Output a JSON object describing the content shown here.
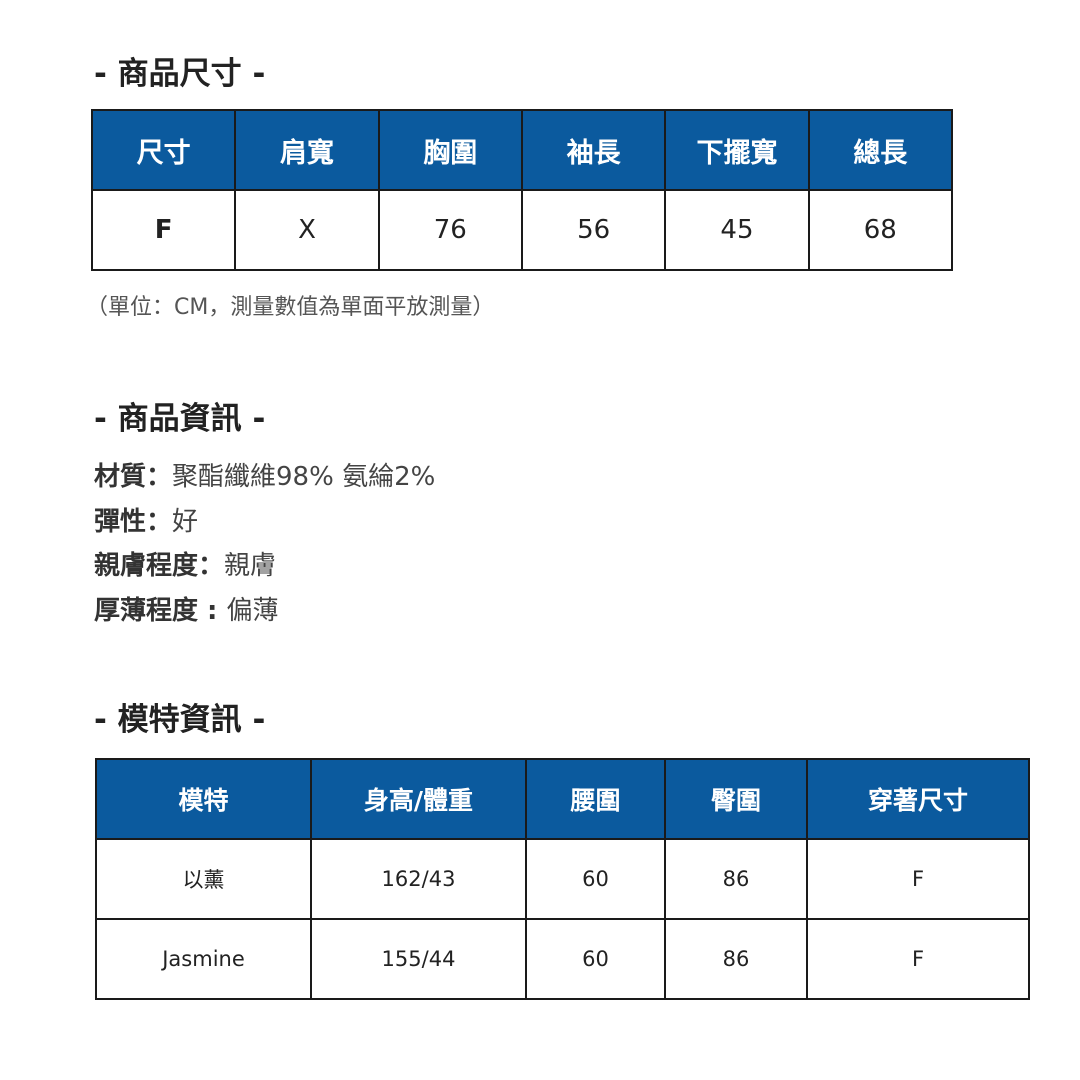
{
  "size_section": {
    "title": "- 商品尺寸 -",
    "headers": [
      "尺寸",
      "肩寬",
      "胸圍",
      "袖長",
      "下擺寬",
      "總長"
    ],
    "rows": [
      [
        "F",
        "X",
        "76",
        "56",
        "45",
        "68"
      ]
    ],
    "note": "（單位：CM，測量數值為單面平放測量）"
  },
  "info_section": {
    "title": "- 商品資訊 -",
    "items": [
      {
        "label": "材質：",
        "value": "聚酯纖維98% 氨綸2%"
      },
      {
        "label": "彈性：",
        "value": "好"
      },
      {
        "label": "親膚程度：",
        "value": "親膚"
      },
      {
        "label": "厚薄程度 : ",
        "value": "偏薄"
      }
    ]
  },
  "model_section": {
    "title": "- 模特資訊 -",
    "headers": [
      "模特",
      "身高/體重",
      "腰圍",
      "臀圍",
      "穿著尺寸"
    ],
    "rows": [
      [
        "以薰",
        "162/43",
        "60",
        "86",
        "F"
      ],
      [
        "Jasmine",
        "155/44",
        "60",
        "86",
        "F"
      ]
    ]
  },
  "colors": {
    "header_bg": "#0b5a9e",
    "header_text": "#ffffff",
    "border": "#1a1a1a"
  }
}
